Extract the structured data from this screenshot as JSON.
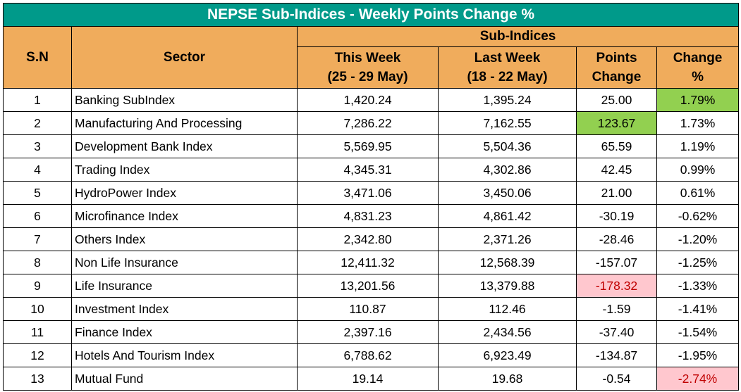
{
  "title": "NEPSE Sub-Indices - Weekly Points Change %",
  "headers": {
    "sn": "S.N",
    "sector": "Sector",
    "group": "Sub-Indices",
    "this_week_line1": "This Week",
    "this_week_line2": "(25 - 29 May)",
    "last_week_line1": "Last Week",
    "last_week_line2": "(18 - 22 May)",
    "points_line1": "Points",
    "points_line2": "Change",
    "change_line1": "Change",
    "change_line2": "%"
  },
  "colors": {
    "title_bg": "#009a8a",
    "header_bg": "#f0ac5c",
    "highlight_green": "#92d050",
    "highlight_red_bg": "#ffc7ce",
    "highlight_red_text": "#c00000"
  },
  "rows": [
    {
      "sn": "1",
      "sector": "Banking SubIndex",
      "this_week": "1,420.24",
      "last_week": "1,395.24",
      "points": "25.00",
      "change": "1.79%",
      "highlight": "change-green"
    },
    {
      "sn": "2",
      "sector": "Manufacturing And Processing",
      "this_week": "7,286.22",
      "last_week": "7,162.55",
      "points": "123.67",
      "change": "1.73%",
      "highlight": "points-green"
    },
    {
      "sn": "3",
      "sector": "Development Bank Index",
      "this_week": "5,569.95",
      "last_week": "5,504.36",
      "points": "65.59",
      "change": "1.19%",
      "highlight": ""
    },
    {
      "sn": "4",
      "sector": "Trading Index",
      "this_week": "4,345.31",
      "last_week": "4,302.86",
      "points": "42.45",
      "change": "0.99%",
      "highlight": ""
    },
    {
      "sn": "5",
      "sector": "HydroPower Index",
      "this_week": "3,471.06",
      "last_week": "3,450.06",
      "points": "21.00",
      "change": "0.61%",
      "highlight": ""
    },
    {
      "sn": "6",
      "sector": "Microfinance Index",
      "this_week": "4,831.23",
      "last_week": "4,861.42",
      "points": "-30.19",
      "change": "-0.62%",
      "highlight": ""
    },
    {
      "sn": "7",
      "sector": "Others Index",
      "this_week": "2,342.80",
      "last_week": "2,371.26",
      "points": "-28.46",
      "change": "-1.20%",
      "highlight": ""
    },
    {
      "sn": "8",
      "sector": "Non Life Insurance",
      "this_week": "12,411.32",
      "last_week": "12,568.39",
      "points": "-157.07",
      "change": "-1.25%",
      "highlight": ""
    },
    {
      "sn": "9",
      "sector": "Life Insurance",
      "this_week": "13,201.56",
      "last_week": "13,379.88",
      "points": "-178.32",
      "change": "-1.33%",
      "highlight": "points-red"
    },
    {
      "sn": "10",
      "sector": "Investment Index",
      "this_week": "110.87",
      "last_week": "112.46",
      "points": "-1.59",
      "change": "-1.41%",
      "highlight": ""
    },
    {
      "sn": "11",
      "sector": "Finance Index",
      "this_week": "2,397.16",
      "last_week": "2,434.56",
      "points": "-37.40",
      "change": "-1.54%",
      "highlight": ""
    },
    {
      "sn": "12",
      "sector": "Hotels And Tourism Index",
      "this_week": "6,788.62",
      "last_week": "6,923.49",
      "points": "-134.87",
      "change": "-1.95%",
      "highlight": ""
    },
    {
      "sn": "13",
      "sector": "Mutual Fund",
      "this_week": "19.14",
      "last_week": "19.68",
      "points": "-0.54",
      "change": "-2.74%",
      "highlight": "change-red"
    }
  ]
}
